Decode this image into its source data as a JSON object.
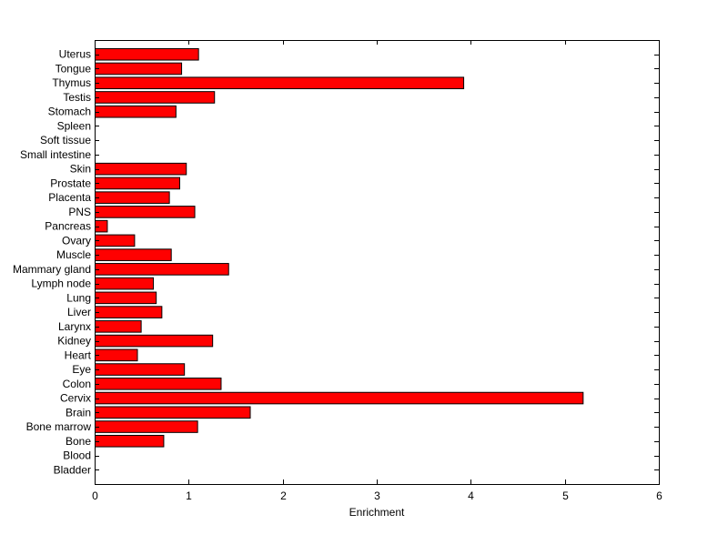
{
  "chart_data": {
    "type": "bar",
    "orientation": "horizontal",
    "categories": [
      "Uterus",
      "Tongue",
      "Thymus",
      "Testis",
      "Stomach",
      "Spleen",
      "Soft tissue",
      "Small intestine",
      "Skin",
      "Prostate",
      "Placenta",
      "PNS",
      "Pancreas",
      "Ovary",
      "Muscle",
      "Mammary gland",
      "Lymph node",
      "Lung",
      "Liver",
      "Larynx",
      "Kidney",
      "Heart",
      "Eye",
      "Colon",
      "Cervix",
      "Brain",
      "Bone marrow",
      "Bone",
      "Blood",
      "Bladder"
    ],
    "values": [
      1.1,
      0.92,
      3.92,
      1.27,
      0.86,
      0,
      0,
      0,
      0.97,
      0.9,
      0.79,
      1.06,
      0.13,
      0.42,
      0.81,
      1.42,
      0.62,
      0.65,
      0.71,
      0.49,
      1.25,
      0.45,
      0.95,
      1.34,
      5.19,
      1.65,
      1.09,
      0.73,
      0,
      0
    ],
    "title": "",
    "xlabel": "Enrichment",
    "ylabel": "",
    "xlim": [
      0,
      6
    ],
    "xticks": [
      "0",
      "1",
      "2",
      "3",
      "4",
      "5",
      "6"
    ],
    "grid": false,
    "bar_color": "#ff0000",
    "bar_edge_color": "#000000"
  }
}
